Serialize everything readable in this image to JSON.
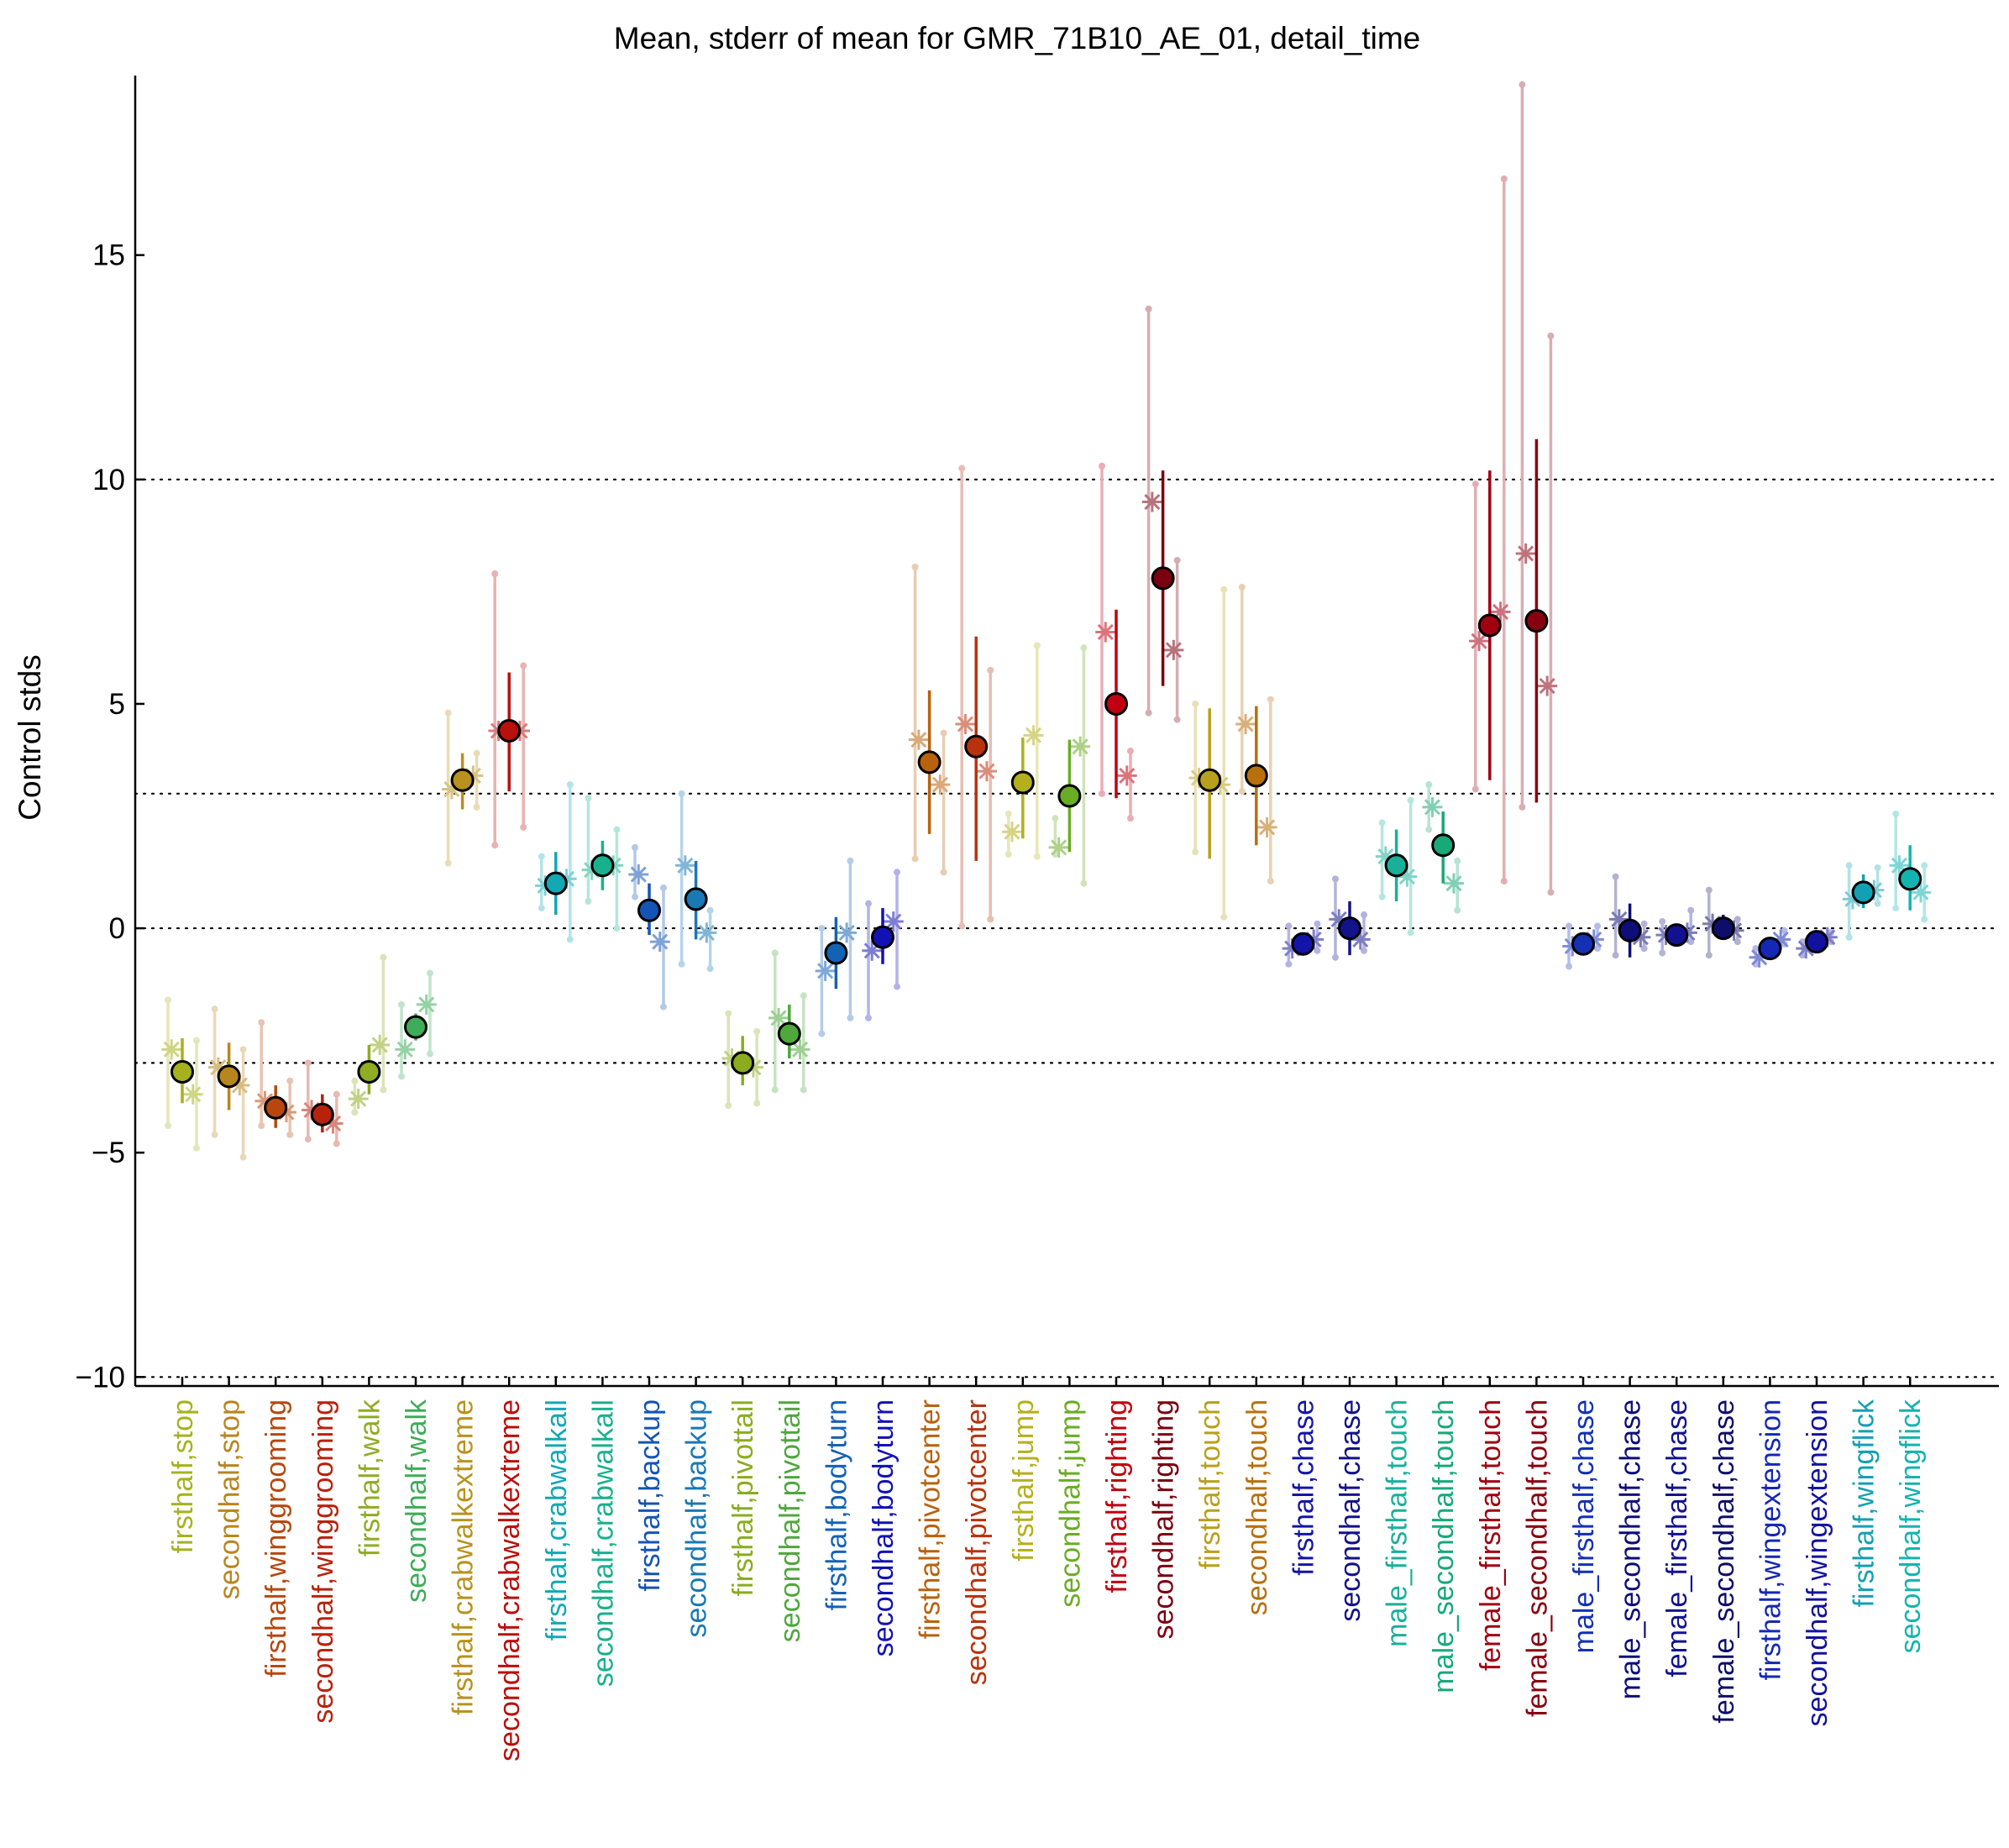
{
  "chart_data": {
    "type": "scatter",
    "title": "Mean, stderr of mean for GMR_71B10_AE_01, detail_time",
    "xlabel": "",
    "ylabel": "Control stds",
    "ylim": [
      -10.2,
      19
    ],
    "yticks": [
      -10,
      -5,
      0,
      5,
      10,
      15
    ],
    "reference_lines": [
      -10,
      -3,
      0,
      3,
      10
    ],
    "grid": false,
    "legend": "none",
    "categories": [
      "firsthalf,stop",
      "secondhalf,stop",
      "firsthalf,winggrooming",
      "secondhalf,winggrooming",
      "firsthalf,walk",
      "secondhalf,walk",
      "firsthalf,crabwalkextreme",
      "secondhalf,crabwalkextreme",
      "firsthalf,crabwalkall",
      "secondhalf,crabwalkall",
      "firsthalf,backup",
      "secondhalf,backup",
      "firsthalf,pivottail",
      "secondhalf,pivottail",
      "firsthalf,bodyturn",
      "secondhalf,bodyturn",
      "firsthalf,pivotcenter",
      "secondhalf,pivotcenter",
      "firsthalf,jump",
      "secondhalf,jump",
      "firsthalf,righting",
      "secondhalf,righting",
      "firsthalf,touch",
      "secondhalf,touch",
      "firsthalf,chase",
      "secondhalf,chase",
      "male_firsthalf,touch",
      "male_secondhalf,touch",
      "female_firsthalf,touch",
      "female_secondhalf,touch",
      "male_firsthalf,chase",
      "male_secondhalf,chase",
      "female_firsthalf,chase",
      "female_secondhalf,chase",
      "firsthalf,wingextension",
      "secondhalf,wingextension",
      "firsthalf,wingflick",
      "secondhalf,wingflick"
    ],
    "colors": [
      "#a6b21d",
      "#b8861e",
      "#b8470d",
      "#b8220d",
      "#8fac22",
      "#3eac58",
      "#b8921e",
      "#b8100d",
      "#13a8b4",
      "#19b08e",
      "#1454b4",
      "#1a78b4",
      "#8aac1e",
      "#4ea83c",
      "#1462b4",
      "#1212b4",
      "#b8620d",
      "#b8320d",
      "#b4b01d",
      "#6aac24",
      "#c00010",
      "#7a0010",
      "#b8a01d",
      "#b8700d",
      "#1414a8",
      "#12128a",
      "#19b09a",
      "#19a878",
      "#a00010",
      "#880010",
      "#1430b4",
      "#0e0e78",
      "#121290",
      "#0e0e6a",
      "#1428b4",
      "#1212a0",
      "#13a0b4",
      "#13b4b0"
    ],
    "means": [
      -3.2,
      -3.3,
      -4.0,
      -4.15,
      -3.2,
      -2.2,
      3.3,
      4.4,
      1.0,
      1.4,
      0.4,
      0.65,
      -3.0,
      -2.35,
      -0.55,
      -0.2,
      3.7,
      4.05,
      3.25,
      2.95,
      5.0,
      7.8,
      3.3,
      3.4,
      -0.35,
      0.0,
      1.4,
      1.85,
      6.75,
      6.85,
      -0.35,
      -0.05,
      -0.15,
      0.0,
      -0.45,
      -0.3,
      0.8,
      1.1
    ],
    "sem_low": [
      -3.9,
      -4.05,
      -4.45,
      -4.55,
      -3.7,
      -2.5,
      2.65,
      3.05,
      0.3,
      0.85,
      -0.15,
      -0.25,
      -3.5,
      -2.9,
      -1.35,
      -0.8,
      2.1,
      1.5,
      2.0,
      1.7,
      2.9,
      5.4,
      1.55,
      1.85,
      -0.5,
      -0.6,
      0.6,
      1.0,
      3.3,
      2.8,
      -0.5,
      -0.65,
      -0.3,
      -0.25,
      -0.55,
      -0.4,
      0.45,
      0.4
    ],
    "sem_high": [
      -2.45,
      -2.55,
      -3.5,
      -3.7,
      -2.6,
      -1.9,
      3.9,
      5.7,
      1.7,
      1.95,
      1.0,
      1.5,
      -2.4,
      -1.7,
      0.25,
      0.45,
      5.3,
      6.5,
      4.25,
      4.2,
      7.1,
      10.2,
      4.9,
      4.95,
      -0.15,
      0.6,
      2.2,
      2.6,
      10.2,
      10.9,
      -0.2,
      0.55,
      0.0,
      0.3,
      -0.3,
      -0.15,
      1.2,
      1.85
    ],
    "sub_markers": [
      [
        -2.7,
        -3.7
      ],
      [
        -3.1,
        -3.5
      ],
      [
        -3.85,
        -4.1
      ],
      [
        -4.05,
        -4.35
      ],
      [
        -3.8,
        -2.6
      ],
      [
        -2.7,
        -1.7
      ],
      [
        3.1,
        3.4
      ],
      [
        4.4,
        4.4
      ],
      [
        0.95,
        1.1
      ],
      [
        1.3,
        1.4
      ],
      [
        1.2,
        -0.3
      ],
      [
        1.4,
        -0.1
      ],
      [
        -2.9,
        -3.1
      ],
      [
        -2.0,
        -2.7
      ],
      [
        -0.95,
        -0.1
      ],
      [
        -0.5,
        0.15
      ],
      [
        4.2,
        3.2
      ],
      [
        4.55,
        3.5
      ],
      [
        2.15,
        4.3
      ],
      [
        1.8,
        4.05
      ],
      [
        6.6,
        3.4
      ],
      [
        9.5,
        6.2
      ],
      [
        3.35,
        3.2
      ],
      [
        4.55,
        2.25
      ],
      [
        -0.45,
        -0.25
      ],
      [
        0.2,
        -0.25
      ],
      [
        1.6,
        1.15
      ],
      [
        2.7,
        1.0
      ],
      [
        6.4,
        7.05
      ],
      [
        8.35,
        5.4
      ],
      [
        -0.4,
        -0.25
      ],
      [
        0.2,
        -0.2
      ],
      [
        -0.15,
        -0.1
      ],
      [
        0.1,
        -0.05
      ],
      [
        -0.65,
        -0.25
      ],
      [
        -0.45,
        -0.2
      ],
      [
        0.65,
        0.85
      ],
      [
        1.4,
        0.8
      ]
    ],
    "sub_ranges": [
      [
        [
          -4.4,
          -1.6
        ],
        [
          -4.9,
          -2.5
        ]
      ],
      [
        [
          -4.6,
          -1.8
        ],
        [
          -5.1,
          -2.7
        ]
      ],
      [
        [
          -4.4,
          -2.1
        ],
        [
          -4.6,
          -3.4
        ]
      ],
      [
        [
          -4.7,
          -3.0
        ],
        [
          -4.8,
          -3.7
        ]
      ],
      [
        [
          -4.1,
          -3.4
        ],
        [
          -3.6,
          -0.65
        ]
      ],
      [
        [
          -3.3,
          -1.7
        ],
        [
          -2.8,
          -1.0
        ]
      ],
      [
        [
          1.45,
          4.8
        ],
        [
          2.7,
          3.9
        ]
      ],
      [
        [
          1.85,
          7.9
        ],
        [
          2.25,
          5.85
        ]
      ],
      [
        [
          0.45,
          1.6
        ],
        [
          -0.25,
          3.2
        ]
      ],
      [
        [
          0.6,
          2.9
        ],
        [
          0.0,
          2.2
        ]
      ],
      [
        [
          0.7,
          1.8
        ],
        [
          -1.75,
          0.9
        ]
      ],
      [
        [
          -0.8,
          3.0
        ],
        [
          -0.9,
          0.4
        ]
      ],
      [
        [
          -3.95,
          -1.9
        ],
        [
          -3.9,
          -2.3
        ]
      ],
      [
        [
          -3.6,
          -0.55
        ],
        [
          -3.6,
          -1.5
        ]
      ],
      [
        [
          -2.35,
          0.0
        ],
        [
          -2.0,
          1.5
        ]
      ],
      [
        [
          -2.0,
          0.55
        ],
        [
          -1.3,
          1.25
        ]
      ],
      [
        [
          1.55,
          8.05
        ],
        [
          1.25,
          4.35
        ]
      ],
      [
        [
          0.05,
          10.25
        ],
        [
          0.2,
          5.75
        ]
      ],
      [
        [
          1.65,
          2.55
        ],
        [
          1.6,
          6.3
        ]
      ],
      [
        [
          1.65,
          2.45
        ],
        [
          1.0,
          6.25
        ]
      ],
      [
        [
          3.0,
          10.3
        ],
        [
          2.45,
          3.95
        ]
      ],
      [
        [
          4.8,
          13.8
        ],
        [
          4.65,
          8.2
        ]
      ],
      [
        [
          1.7,
          5.0
        ],
        [
          0.25,
          7.55
        ]
      ],
      [
        [
          3.05,
          7.6
        ],
        [
          1.05,
          5.1
        ]
      ],
      [
        [
          -0.8,
          0.05
        ],
        [
          -0.5,
          0.1
        ]
      ],
      [
        [
          -0.65,
          1.1
        ],
        [
          -0.5,
          0.3
        ]
      ],
      [
        [
          0.7,
          2.35
        ],
        [
          -0.1,
          2.85
        ]
      ],
      [
        [
          2.2,
          3.2
        ],
        [
          0.4,
          1.5
        ]
      ],
      [
        [
          3.1,
          9.9
        ],
        [
          1.05,
          16.7
        ]
      ],
      [
        [
          2.7,
          18.8
        ],
        [
          0.8,
          13.2
        ]
      ],
      [
        [
          -0.85,
          0.05
        ],
        [
          -0.45,
          0.05
        ]
      ],
      [
        [
          -0.6,
          1.15
        ],
        [
          -0.45,
          0.1
        ]
      ],
      [
        [
          -0.55,
          0.15
        ],
        [
          -0.3,
          0.4
        ]
      ],
      [
        [
          -0.6,
          0.85
        ],
        [
          -0.3,
          0.2
        ]
      ],
      [
        [
          -0.8,
          -0.45
        ],
        [
          -0.35,
          -0.05
        ]
      ],
      [
        [
          -0.6,
          -0.3
        ],
        [
          -0.3,
          -0.1
        ]
      ],
      [
        [
          -0.2,
          1.4
        ],
        [
          0.55,
          1.35
        ]
      ],
      [
        [
          0.45,
          2.55
        ],
        [
          0.2,
          1.4
        ]
      ]
    ]
  }
}
